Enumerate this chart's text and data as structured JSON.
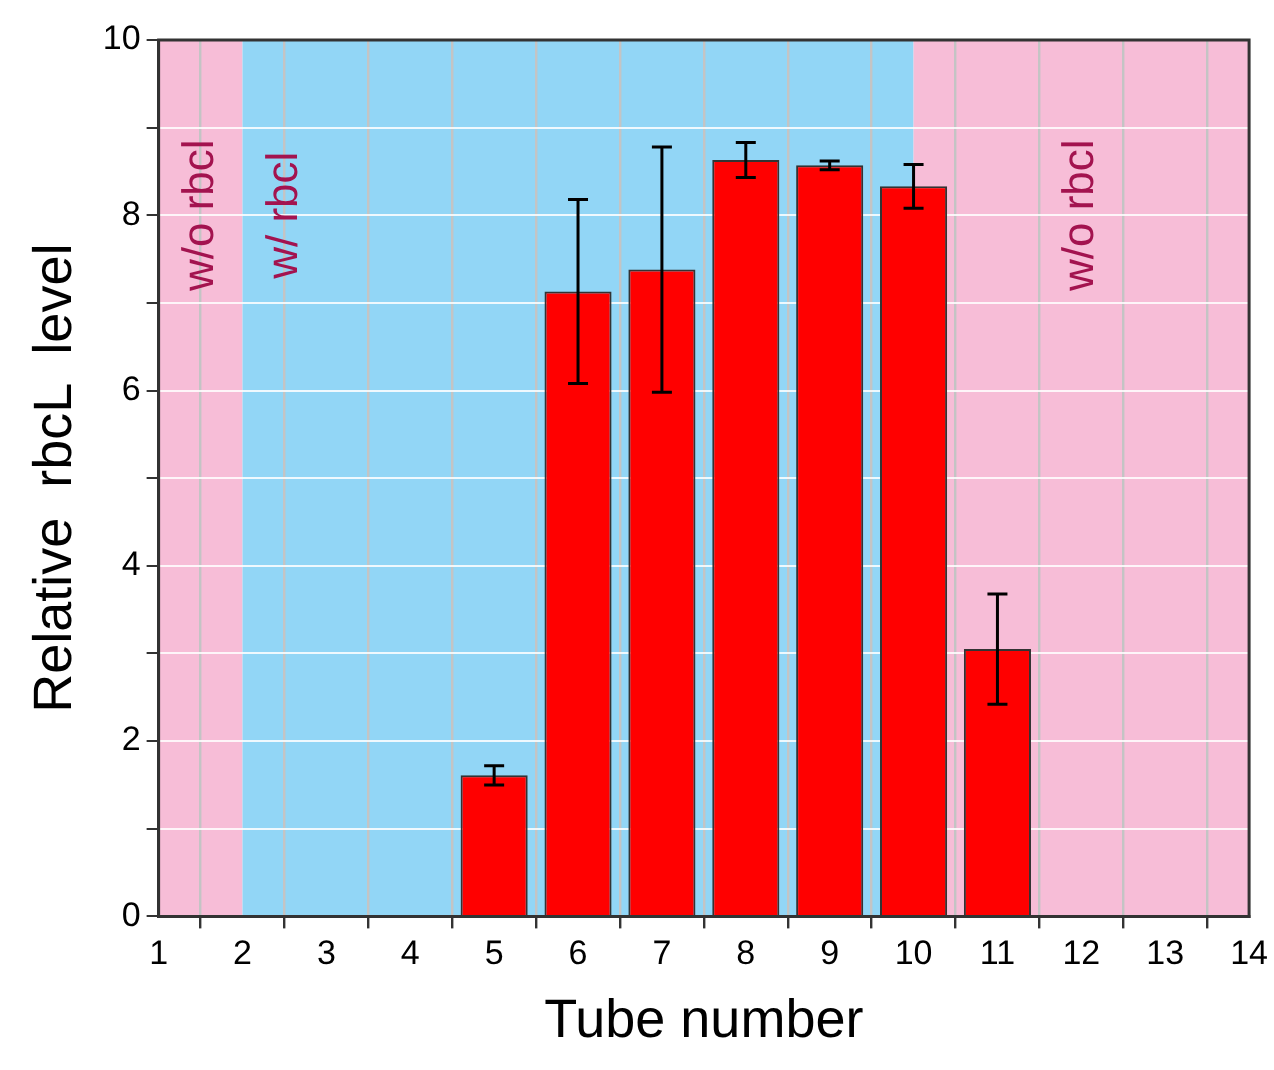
{
  "chart_data": {
    "type": "bar",
    "xlabel": "Tube number",
    "ylabel": "Relative  rbcL  level",
    "x": [
      5,
      6,
      7,
      8,
      9,
      10,
      11
    ],
    "values": [
      1.61,
      7.13,
      7.38,
      8.63,
      8.57,
      8.33,
      3.05
    ],
    "errors": [
      0.11,
      1.05,
      1.4,
      0.2,
      0.05,
      0.25,
      0.63
    ],
    "color": "#ff0000",
    "xlim": [
      1,
      14
    ],
    "xticks": [
      1,
      2,
      3,
      4,
      5,
      6,
      7,
      8,
      9,
      10,
      11,
      12,
      13,
      14
    ],
    "ylim": [
      0,
      10
    ],
    "yticks": [
      0,
      {
        "value": 1,
        "label": null
      },
      2,
      {
        "value": 3,
        "label": null
      },
      4,
      {
        "value": 5,
        "label": null
      },
      6,
      {
        "value": 7,
        "label": null
      },
      8,
      {
        "value": 9,
        "label": null
      },
      10
    ],
    "bands": [
      {
        "axis": "x",
        "from": 1,
        "to": 2,
        "label": "w/o rbcl",
        "color": "#f7bdd7"
      },
      {
        "axis": "x",
        "from": 2,
        "to": 10,
        "label": "w/ rbcl",
        "color": "#92d6f6"
      },
      {
        "axis": "x",
        "from": 10,
        "to": 14,
        "label": "w/o rbcl",
        "color": "#f7bdd7"
      }
    ],
    "grid": true,
    "legend": false
  }
}
